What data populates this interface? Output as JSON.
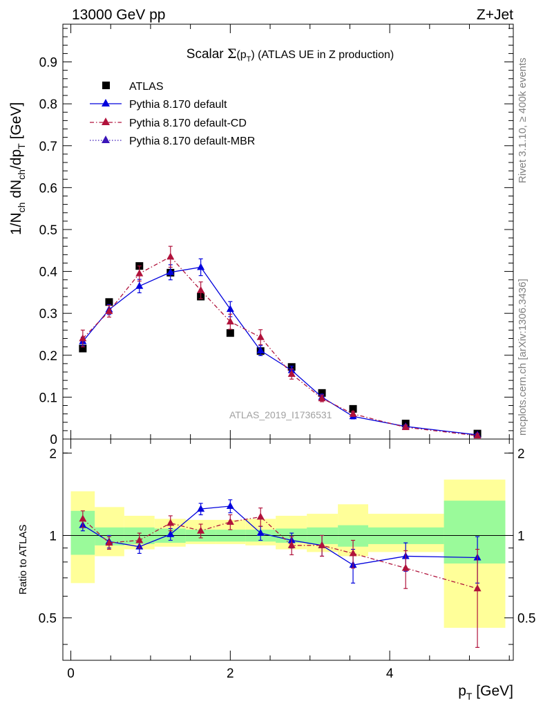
{
  "header": {
    "left": "13000 GeV pp",
    "right": "Z+Jet"
  },
  "side_labels": {
    "rivet": "Rivet 3.1.10, ≥ 400k events",
    "mcplots": "mcplots.cern.ch [arXiv:1306.3436]"
  },
  "watermark": "ATLAS_2019_I1736531",
  "colors": {
    "atlas": "#000000",
    "default": "#0000dd",
    "cd": "#b0123b",
    "mbr": "#3a14b8",
    "band_stat": "#9afa9a",
    "band_total": "#ffff99"
  },
  "chart_data": [
    {
      "type": "line",
      "panel": "main",
      "title": "Scalar Σ(p_T) (ATLAS UE in Z production)",
      "title_parts": {
        "prefix": "Scalar ",
        "sigma": "Σ",
        "open": "(p",
        "sub": "T",
        "close": ")",
        "rest": " (ATLAS UE in Z production)"
      },
      "ylabel": "1/N_ch dN_ch/dp_T [GeV]",
      "ylabel_parts": {
        "a": "1/N",
        "a_sub": "ch",
        "b": " dN",
        "b_sub": "ch",
        "c": "/dp",
        "c_sub": "T",
        "d": " [GeV]"
      },
      "xlim": [
        -0.1,
        5.55
      ],
      "ylim": [
        0,
        0.99
      ],
      "yticks": [
        "0",
        "0.1",
        "0.2",
        "0.3",
        "0.4",
        "0.5",
        "0.6",
        "0.7",
        "0.8",
        "0.9"
      ],
      "legend_position": "top-left",
      "series": [
        {
          "name": "ATLAS",
          "style": "square",
          "x": [
            0.15,
            0.48,
            0.86,
            1.25,
            1.63,
            2.0,
            2.38,
            2.77,
            3.15,
            3.54,
            4.2,
            5.1
          ],
          "values": [
            0.216,
            0.327,
            0.413,
            0.397,
            0.34,
            0.253,
            0.21,
            0.172,
            0.11,
            0.072,
            0.037,
            0.013
          ]
        },
        {
          "name": "Pythia 8.170 default",
          "style": "solid",
          "x": [
            0.15,
            0.48,
            0.86,
            1.25,
            1.63,
            2.0,
            2.38,
            2.77,
            3.15,
            3.54,
            4.2,
            5.1
          ],
          "values": [
            0.233,
            0.309,
            0.365,
            0.398,
            0.41,
            0.31,
            0.211,
            0.164,
            0.1,
            0.054,
            0.03,
            0.01
          ],
          "errors": [
            0.01,
            0.012,
            0.016,
            0.018,
            0.02,
            0.018,
            0.012,
            0.01,
            0.007,
            0.006,
            0.004,
            0.004
          ]
        },
        {
          "name": "Pythia 8.170 default-CD",
          "style": "dashdot",
          "x": [
            0.15,
            0.48,
            0.86,
            1.25,
            1.63,
            2.0,
            2.38,
            2.77,
            3.15,
            3.54,
            4.2,
            5.1
          ],
          "values": [
            0.24,
            0.305,
            0.395,
            0.435,
            0.355,
            0.28,
            0.243,
            0.155,
            0.097,
            0.06,
            0.028,
            0.008
          ],
          "errors": [
            0.02,
            0.014,
            0.018,
            0.025,
            0.02,
            0.018,
            0.018,
            0.012,
            0.008,
            0.006,
            0.005,
            0.004
          ]
        },
        {
          "name": "Pythia 8.170 default-MBR",
          "style": "dotted",
          "x": [],
          "values": []
        }
      ]
    },
    {
      "type": "line",
      "panel": "ratio",
      "xlabel": "p_T [GeV]",
      "xlabel_parts": {
        "a": "p",
        "sub": "T",
        "rest": " [GeV]"
      },
      "ylabel": "Ratio to ATLAS",
      "xlim": [
        -0.1,
        5.55
      ],
      "ylim": [
        0.35,
        2.25
      ],
      "yticks": [
        "0.5",
        "1",
        "2"
      ],
      "xticks": [
        "0",
        "2",
        "4"
      ],
      "bands": {
        "edges": [
          0.0,
          0.3,
          0.67,
          1.05,
          1.44,
          1.82,
          2.19,
          2.57,
          2.96,
          3.35,
          3.73,
          4.68,
          5.45
        ],
        "stat_low": [
          0.85,
          0.92,
          0.93,
          0.94,
          0.95,
          0.95,
          0.95,
          0.94,
          0.93,
          0.91,
          0.93,
          0.79
        ],
        "stat_high": [
          1.23,
          1.07,
          1.07,
          1.06,
          1.05,
          1.05,
          1.05,
          1.06,
          1.07,
          1.09,
          1.07,
          1.34
        ],
        "total_low": [
          0.67,
          0.84,
          0.89,
          0.91,
          0.93,
          0.93,
          0.92,
          0.89,
          0.87,
          0.84,
          0.87,
          0.46
        ],
        "total_high": [
          1.45,
          1.27,
          1.18,
          1.15,
          1.14,
          1.14,
          1.15,
          1.18,
          1.2,
          1.3,
          1.2,
          1.6
        ]
      },
      "series": [
        {
          "name": "Pythia 8.170 default",
          "style": "solid",
          "x": [
            0.15,
            0.48,
            0.86,
            1.25,
            1.63,
            2.0,
            2.38,
            2.77,
            3.15,
            3.54,
            4.2,
            5.1
          ],
          "values": [
            1.09,
            0.95,
            0.91,
            1.01,
            1.25,
            1.28,
            1.02,
            0.96,
            0.92,
            0.78,
            0.84,
            0.83
          ],
          "errors": [
            0.05,
            0.05,
            0.05,
            0.05,
            0.06,
            0.07,
            0.06,
            0.06,
            0.08,
            0.11,
            0.1,
            0.16
          ]
        },
        {
          "name": "Pythia 8.170 default-CD",
          "style": "dashdot",
          "x": [
            0.15,
            0.48,
            0.86,
            1.25,
            1.63,
            2.0,
            2.38,
            2.77,
            3.15,
            3.54,
            4.2,
            5.1
          ],
          "values": [
            1.15,
            0.94,
            0.96,
            1.11,
            1.04,
            1.12,
            1.17,
            0.92,
            0.92,
            0.86,
            0.76,
            0.64
          ],
          "errors": [
            0.08,
            0.05,
            0.06,
            0.07,
            0.06,
            0.07,
            0.09,
            0.07,
            0.08,
            0.1,
            0.12,
            0.25
          ]
        }
      ]
    }
  ]
}
